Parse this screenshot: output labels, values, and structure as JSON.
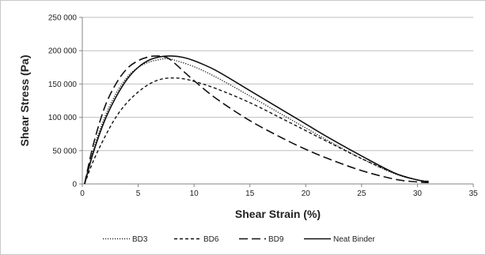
{
  "chart_data": {
    "type": "line",
    "title": "",
    "xlabel": "Shear Strain (%)",
    "ylabel": "Shear Stress (Pa)",
    "xlim": [
      0,
      35
    ],
    "ylim": [
      0,
      250000
    ],
    "x_ticks": [
      {
        "value": 0,
        "label": "0"
      },
      {
        "value": 5,
        "label": "5"
      },
      {
        "value": 10,
        "label": "10"
      },
      {
        "value": 15,
        "label": "15"
      },
      {
        "value": 20,
        "label": "20"
      },
      {
        "value": 25,
        "label": "25"
      },
      {
        "value": 30,
        "label": "30"
      },
      {
        "value": 35,
        "label": "35"
      }
    ],
    "y_ticks": [
      {
        "value": 0,
        "label": "0"
      },
      {
        "value": 50000,
        "label": "50 000"
      },
      {
        "value": 100000,
        "label": "100 000"
      },
      {
        "value": 150000,
        "label": "150 000"
      },
      {
        "value": 200000,
        "label": "200 000"
      },
      {
        "value": 250000,
        "label": "250 000"
      }
    ],
    "grid": "horizontal",
    "legend_position": "bottom",
    "series": [
      {
        "name": "BD3",
        "style": "dotted",
        "x": [
          0.2,
          1,
          2,
          3,
          4,
          5,
          6,
          7,
          7.5,
          8,
          10,
          12,
          15,
          18,
          20,
          22,
          25,
          28,
          30,
          31
        ],
        "y": [
          0,
          52000,
          100000,
          135000,
          160000,
          175000,
          183000,
          187000,
          188000,
          187000,
          176000,
          160000,
          132000,
          103000,
          84000,
          65000,
          38000,
          15000,
          6000,
          4000
        ]
      },
      {
        "name": "BD6",
        "style": "short-dash",
        "x": [
          0.2,
          1,
          2,
          3,
          4,
          5,
          6,
          7,
          8,
          9,
          10,
          12,
          15,
          18,
          20,
          22,
          25,
          28,
          30,
          31
        ],
        "y": [
          0,
          35000,
          70000,
          100000,
          122000,
          138000,
          150000,
          157000,
          159000,
          158000,
          154000,
          143000,
          122000,
          97000,
          80000,
          63000,
          38000,
          16000,
          6000,
          4000
        ]
      },
      {
        "name": "BD9",
        "style": "long-dash",
        "x": [
          0.2,
          1,
          2,
          3,
          4,
          5,
          6,
          6.8,
          7.5,
          8,
          9,
          10,
          12,
          15,
          18,
          20,
          22,
          25,
          28,
          30,
          31
        ],
        "y": [
          0,
          60000,
          115000,
          150000,
          173000,
          185000,
          191000,
          192000,
          190000,
          185000,
          170000,
          155000,
          128000,
          95000,
          68000,
          52000,
          38000,
          20000,
          7000,
          3000,
          2000
        ]
      },
      {
        "name": "Neat Binder",
        "style": "solid",
        "x": [
          0.2,
          1,
          2,
          3,
          4,
          5,
          6,
          7,
          8,
          9,
          10,
          12,
          15,
          18,
          20,
          22,
          25,
          28,
          30,
          31
        ],
        "y": [
          0,
          48000,
          95000,
          130000,
          157000,
          175000,
          186000,
          191000,
          192000,
          190000,
          185000,
          170000,
          140000,
          110000,
          90000,
          70000,
          42000,
          16000,
          6000,
          3000
        ]
      }
    ]
  }
}
